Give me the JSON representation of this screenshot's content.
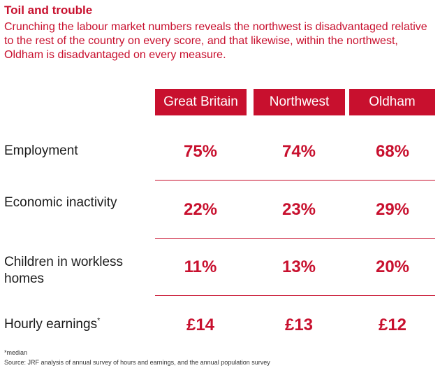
{
  "chart_data": {
    "type": "table",
    "title": "Toil and trouble",
    "subtitle": "Crunching the labour market numbers reveals the northwest is disadvantaged relative to the rest of the country on every score, and that likewise, within the northwest, Oldham is disadvantaged on every measure.",
    "columns": [
      "Great Britain",
      "Northwest",
      "Oldham"
    ],
    "rows": [
      {
        "label": "Employment",
        "marker": "",
        "values": [
          "75%",
          "74%",
          "68%"
        ]
      },
      {
        "label": "Economic inactivity",
        "marker": "",
        "values": [
          "22%",
          "23%",
          "29%"
        ]
      },
      {
        "label": "Children in workless homes",
        "marker": "",
        "values": [
          "11%",
          "13%",
          "20%"
        ]
      },
      {
        "label": "Hourly earnings",
        "marker": "*",
        "values": [
          "£14",
          "£13",
          "£12"
        ]
      }
    ],
    "footnote": "*median",
    "source": "Source: JRF analysis of annual survey of hours and earnings, and the annual population survey",
    "colors": {
      "accent": "#c8102e",
      "text": "#1a1a1a"
    }
  }
}
